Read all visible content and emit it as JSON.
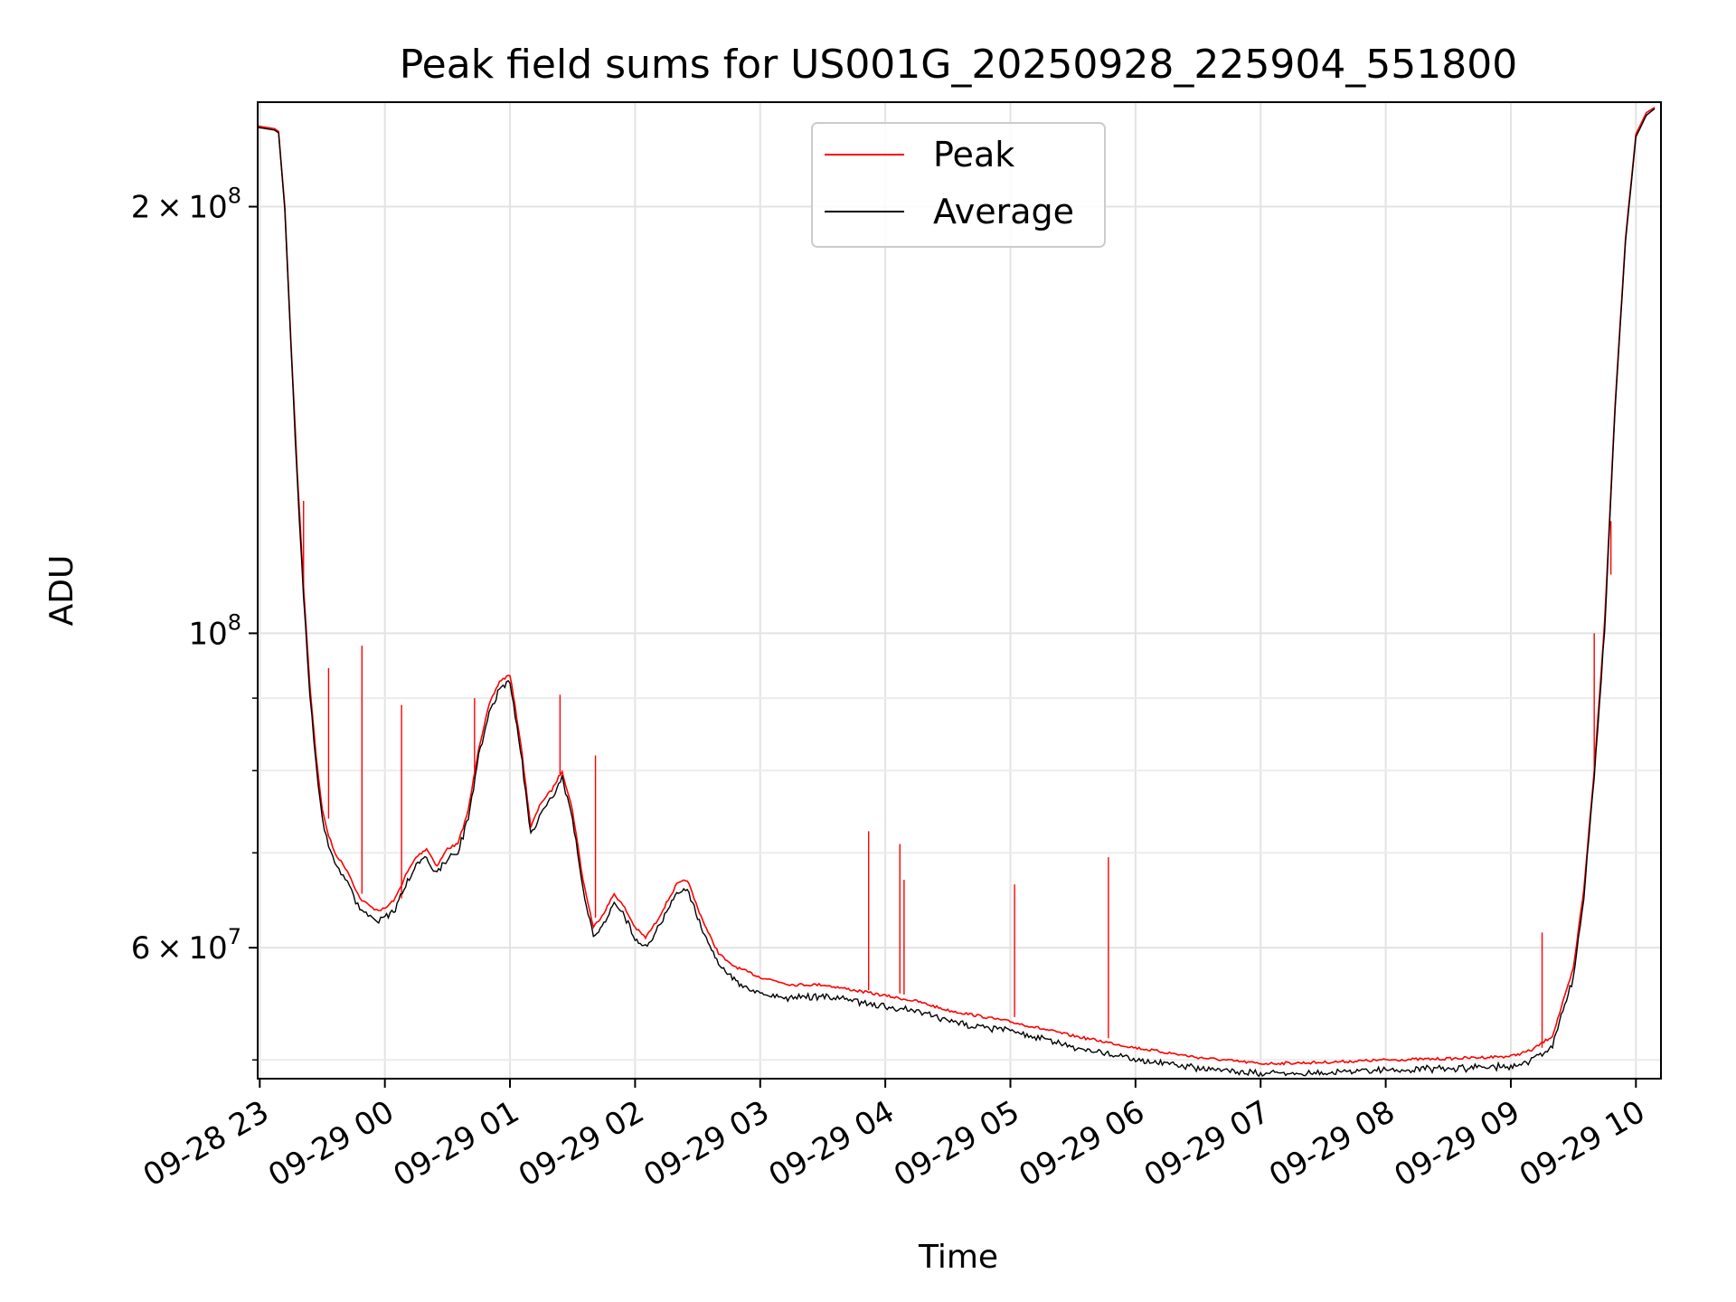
{
  "chart_data": {
    "type": "line",
    "title": "Peak field sums for US001G_20250928_225904_551800",
    "xlabel": "Time",
    "ylabel": "ADU",
    "y_scale": "log",
    "ylim": [
      48500000,
      237000000
    ],
    "xlim": [
      "2025-09-28 22:59",
      "2025-09-29 10:12"
    ],
    "grid": true,
    "legend_position": "top-center",
    "x_ticks": [
      {
        "value": "2025-09-28 23:00",
        "label": "09-28 23"
      },
      {
        "value": "2025-09-29 00:00",
        "label": "09-29 00"
      },
      {
        "value": "2025-09-29 01:00",
        "label": "09-29 01"
      },
      {
        "value": "2025-09-29 02:00",
        "label": "09-29 02"
      },
      {
        "value": "2025-09-29 03:00",
        "label": "09-29 03"
      },
      {
        "value": "2025-09-29 04:00",
        "label": "09-29 04"
      },
      {
        "value": "2025-09-29 05:00",
        "label": "09-29 05"
      },
      {
        "value": "2025-09-29 06:00",
        "label": "09-29 06"
      },
      {
        "value": "2025-09-29 07:00",
        "label": "09-29 07"
      },
      {
        "value": "2025-09-29 08:00",
        "label": "09-29 08"
      },
      {
        "value": "2025-09-29 09:00",
        "label": "09-29 09"
      },
      {
        "value": "2025-09-29 10:00",
        "label": "09-29 10"
      }
    ],
    "y_major_ticks": [
      {
        "value": 60000000,
        "mantissa": "6",
        "base": "10",
        "exp": "7"
      },
      {
        "value": 100000000,
        "mantissa": "",
        "base": "10",
        "exp": "8"
      },
      {
        "value": 200000000,
        "mantissa": "2",
        "base": "10",
        "exp": "8"
      }
    ],
    "y_minor_ticks": [
      50000000,
      70000000,
      80000000,
      90000000
    ],
    "series": [
      {
        "name": "Peak",
        "color": "#ff0000",
        "x": [
          "2025-09-28 22:59",
          "2025-09-28 23:07",
          "2025-09-28 23:09",
          "2025-09-28 23:12",
          "2025-09-28 23:15",
          "2025-09-28 23:18",
          "2025-09-28 23:21",
          "2025-09-28 23:24",
          "2025-09-28 23:27",
          "2025-09-28 23:30",
          "2025-09-28 23:33",
          "2025-09-28 23:36",
          "2025-09-28 23:39",
          "2025-09-28 23:42",
          "2025-09-28 23:45",
          "2025-09-28 23:48",
          "2025-09-28 23:51",
          "2025-09-28 23:54",
          "2025-09-28 23:57",
          "2025-09-29 00:00",
          "2025-09-29 00:05",
          "2025-09-29 00:10",
          "2025-09-29 00:15",
          "2025-09-29 00:20",
          "2025-09-29 00:25",
          "2025-09-29 00:30",
          "2025-09-29 00:35",
          "2025-09-29 00:40",
          "2025-09-29 00:45",
          "2025-09-29 00:50",
          "2025-09-29 00:55",
          "2025-09-29 01:00",
          "2025-09-29 01:05",
          "2025-09-29 01:10",
          "2025-09-29 01:15",
          "2025-09-29 01:20",
          "2025-09-29 01:25",
          "2025-09-29 01:30",
          "2025-09-29 01:35",
          "2025-09-29 01:40",
          "2025-09-29 01:45",
          "2025-09-29 01:50",
          "2025-09-29 01:55",
          "2025-09-29 02:00",
          "2025-09-29 02:05",
          "2025-09-29 02:10",
          "2025-09-29 02:15",
          "2025-09-29 02:20",
          "2025-09-29 02:25",
          "2025-09-29 02:30",
          "2025-09-29 02:35",
          "2025-09-29 02:40",
          "2025-09-29 02:45",
          "2025-09-29 02:50",
          "2025-09-29 03:00",
          "2025-09-29 03:15",
          "2025-09-29 03:30",
          "2025-09-29 03:45",
          "2025-09-29 04:00",
          "2025-09-29 04:15",
          "2025-09-29 04:30",
          "2025-09-29 04:45",
          "2025-09-29 05:00",
          "2025-09-29 05:15",
          "2025-09-29 05:30",
          "2025-09-29 05:45",
          "2025-09-29 06:00",
          "2025-09-29 06:30",
          "2025-09-29 07:00",
          "2025-09-29 07:30",
          "2025-09-29 08:00",
          "2025-09-29 08:30",
          "2025-09-29 09:00",
          "2025-09-29 09:10",
          "2025-09-29 09:20",
          "2025-09-29 09:30",
          "2025-09-29 09:35",
          "2025-09-29 09:40",
          "2025-09-29 09:45",
          "2025-09-29 09:50",
          "2025-09-29 09:55",
          "2025-09-29 10:00",
          "2025-09-29 10:05",
          "2025-09-29 10:09"
        ],
        "values": [
          228000000,
          227000000,
          226000000,
          200000000,
          160000000,
          130000000,
          108000000,
          92000000,
          82000000,
          75000000,
          72000000,
          70000000,
          69000000,
          68000000,
          66500000,
          65000000,
          64500000,
          64000000,
          63800000,
          63900000,
          65000000,
          67500000,
          69500000,
          70500000,
          68500000,
          70500000,
          71000000,
          75000000,
          83000000,
          89000000,
          92500000,
          93500000,
          84000000,
          73000000,
          76000000,
          77500000,
          80000000,
          75000000,
          67000000,
          62000000,
          63500000,
          65500000,
          64000000,
          62000000,
          61000000,
          62500000,
          64500000,
          66500000,
          67000000,
          64000000,
          61500000,
          59500000,
          58500000,
          58000000,
          57200000,
          56500000,
          56500000,
          56000000,
          55500000,
          55000000,
          54200000,
          53700000,
          53200000,
          52600000,
          52000000,
          51500000,
          51000000,
          50200000,
          49700000,
          49800000,
          50000000,
          50100000,
          50300000,
          50800000,
          52000000,
          58000000,
          66000000,
          80000000,
          102000000,
          145000000,
          190000000,
          225000000,
          233000000,
          235000000
        ]
      },
      {
        "name": "Average",
        "color": "#000000",
        "x": [
          "2025-09-28 22:59",
          "2025-09-28 23:07",
          "2025-09-28 23:09",
          "2025-09-28 23:12",
          "2025-09-28 23:15",
          "2025-09-28 23:18",
          "2025-09-28 23:21",
          "2025-09-28 23:24",
          "2025-09-28 23:27",
          "2025-09-28 23:30",
          "2025-09-28 23:33",
          "2025-09-28 23:36",
          "2025-09-28 23:39",
          "2025-09-28 23:42",
          "2025-09-28 23:45",
          "2025-09-28 23:48",
          "2025-09-28 23:51",
          "2025-09-28 23:54",
          "2025-09-28 23:57",
          "2025-09-29 00:00",
          "2025-09-29 00:05",
          "2025-09-29 00:10",
          "2025-09-29 00:15",
          "2025-09-29 00:20",
          "2025-09-29 00:25",
          "2025-09-29 00:30",
          "2025-09-29 00:35",
          "2025-09-29 00:40",
          "2025-09-29 00:45",
          "2025-09-29 00:50",
          "2025-09-29 00:55",
          "2025-09-29 01:00",
          "2025-09-29 01:05",
          "2025-09-29 01:10",
          "2025-09-29 01:15",
          "2025-09-29 01:20",
          "2025-09-29 01:25",
          "2025-09-29 01:30",
          "2025-09-29 01:35",
          "2025-09-29 01:40",
          "2025-09-29 01:45",
          "2025-09-29 01:50",
          "2025-09-29 01:55",
          "2025-09-29 02:00",
          "2025-09-29 02:05",
          "2025-09-29 02:10",
          "2025-09-29 02:15",
          "2025-09-29 02:20",
          "2025-09-29 02:25",
          "2025-09-29 02:30",
          "2025-09-29 02:35",
          "2025-09-29 02:40",
          "2025-09-29 02:45",
          "2025-09-29 02:50",
          "2025-09-29 03:00",
          "2025-09-29 03:15",
          "2025-09-29 03:30",
          "2025-09-29 03:45",
          "2025-09-29 04:00",
          "2025-09-29 04:15",
          "2025-09-29 04:30",
          "2025-09-29 04:45",
          "2025-09-29 05:00",
          "2025-09-29 05:15",
          "2025-09-29 05:30",
          "2025-09-29 05:45",
          "2025-09-29 06:00",
          "2025-09-29 06:30",
          "2025-09-29 07:00",
          "2025-09-29 07:30",
          "2025-09-29 08:00",
          "2025-09-29 08:30",
          "2025-09-29 09:00",
          "2025-09-29 09:10",
          "2025-09-29 09:20",
          "2025-09-29 09:30",
          "2025-09-29 09:35",
          "2025-09-29 09:40",
          "2025-09-29 09:45",
          "2025-09-29 09:50",
          "2025-09-29 09:55",
          "2025-09-29 10:00",
          "2025-09-29 10:05",
          "2025-09-29 10:09"
        ],
        "values": [
          227500000,
          226500000,
          225500000,
          199000000,
          159000000,
          129000000,
          107000000,
          91000000,
          81000000,
          74500000,
          71000000,
          69000000,
          68000000,
          67000000,
          65500000,
          64200000,
          63500000,
          63200000,
          63000000,
          63200000,
          64200000,
          66800000,
          68800000,
          69800000,
          67800000,
          69800000,
          70300000,
          74300000,
          82300000,
          88300000,
          91800000,
          92800000,
          83300000,
          72300000,
          75300000,
          76800000,
          79300000,
          74300000,
          66300000,
          61300000,
          62800000,
          64800000,
          63300000,
          61300000,
          60300000,
          61800000,
          63800000,
          65800000,
          66300000,
          63300000,
          60800000,
          58800000,
          57800000,
          56700000,
          56000000,
          55500000,
          55700000,
          55300000,
          54800000,
          54300000,
          53500000,
          53000000,
          52700000,
          52000000,
          51300000,
          50800000,
          50300000,
          49600000,
          49100000,
          49200000,
          49400000,
          49500000,
          49700000,
          50200000,
          51400000,
          57400000,
          65400000,
          79400000,
          101000000,
          144000000,
          189000000,
          224000000,
          232000000,
          234500000
        ]
      }
    ],
    "peak_spikes": [
      {
        "x": "2025-09-28 23:21",
        "base": 108000000,
        "top": 124000000
      },
      {
        "x": "2025-09-28 23:33",
        "base": 74000000,
        "top": 94500000
      },
      {
        "x": "2025-09-28 23:49",
        "base": 65500000,
        "top": 98000000
      },
      {
        "x": "2025-09-29 00:08",
        "base": 65000000,
        "top": 89000000
      },
      {
        "x": "2025-09-29 00:43",
        "base": 79000000,
        "top": 90000000
      },
      {
        "x": "2025-09-29 01:24",
        "base": 79500000,
        "top": 90500000
      },
      {
        "x": "2025-09-29 01:41",
        "base": 63000000,
        "top": 82000000
      },
      {
        "x": "2025-09-29 03:52",
        "base": 56000000,
        "top": 72500000
      },
      {
        "x": "2025-09-29 04:07",
        "base": 55700000,
        "top": 71000000
      },
      {
        "x": "2025-09-29 04:09",
        "base": 55600000,
        "top": 67000000
      },
      {
        "x": "2025-09-29 05:02",
        "base": 53600000,
        "top": 66500000
      },
      {
        "x": "2025-09-29 05:47",
        "base": 51800000,
        "top": 69500000
      },
      {
        "x": "2025-09-29 09:15",
        "base": 51000000,
        "top": 61500000
      },
      {
        "x": "2025-09-29 09:40",
        "base": 80000000,
        "top": 100000000
      },
      {
        "x": "2025-09-29 09:48",
        "base": 110000000,
        "top": 120000000
      }
    ]
  }
}
